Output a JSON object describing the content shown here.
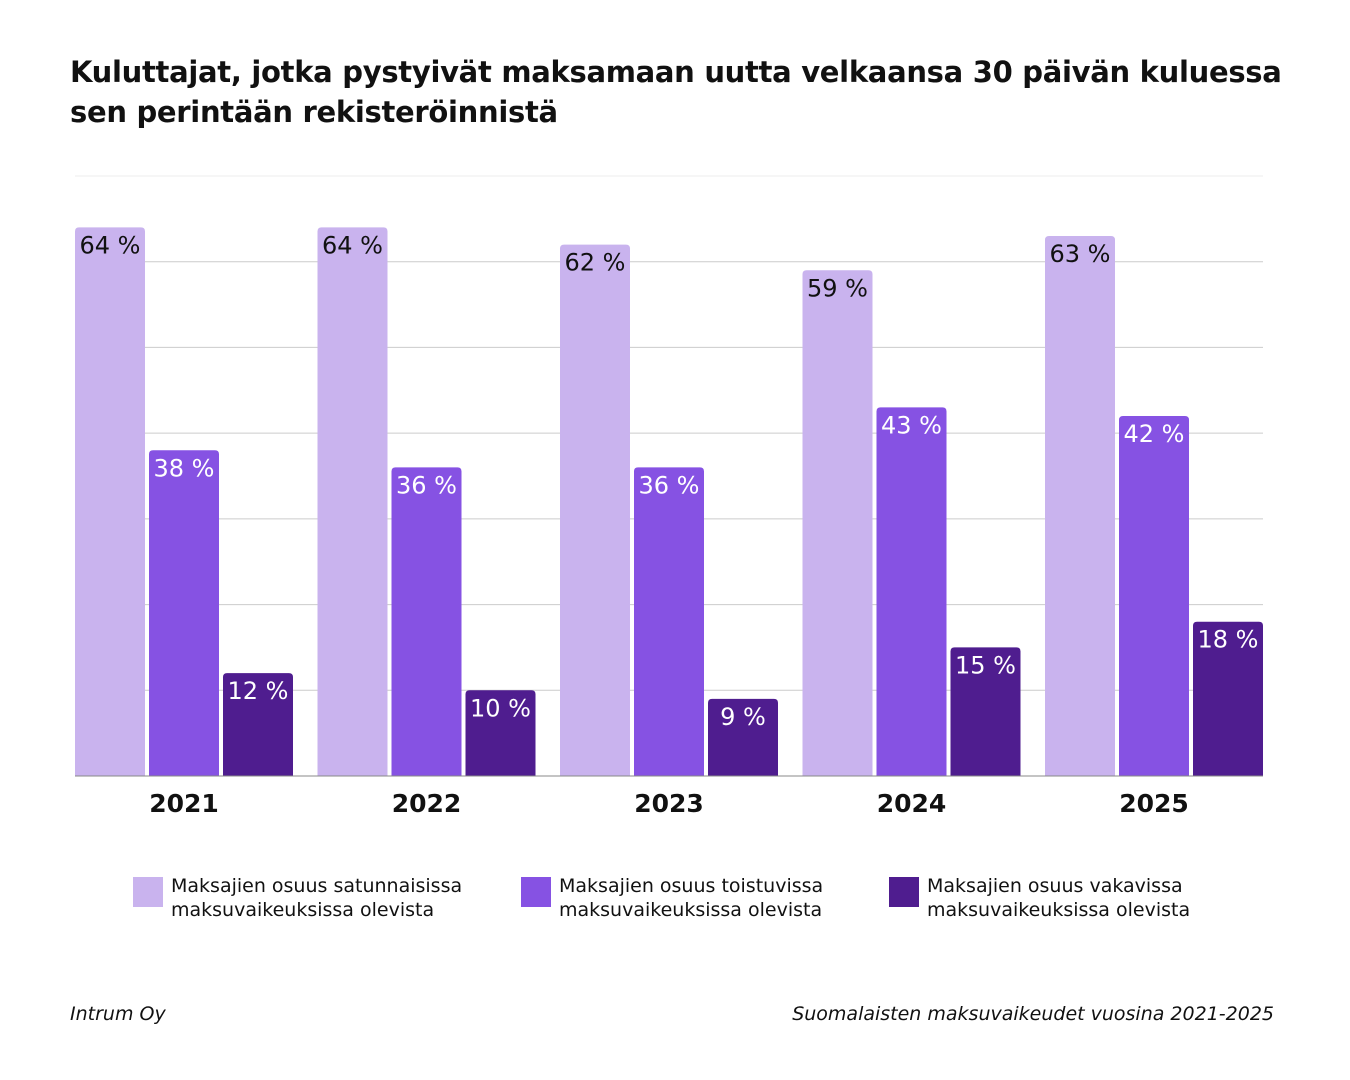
{
  "title": "Kuluttajat, jotka pystyivät maksamaan uutta velkaansa 30 päivän kuluessa sen perintään rekisteröinnistä",
  "source": "Intrum Oy",
  "note": "Suomalaisten maksuvaikeudet vuosina 2021-2025",
  "chart_data": {
    "type": "bar",
    "title": "Kuluttajat, jotka pystyivät maksamaan uutta velkaansa 30 päivän kuluessa sen perintään rekisteröinnistä",
    "categories": [
      "2021",
      "2022",
      "2023",
      "2024",
      "2025"
    ],
    "series": [
      {
        "name": "Maksajien osuus satunnaisissa maksuvaikeuksissa olevista",
        "color": "#c9b3ee",
        "label_color": "#111111",
        "values": [
          64,
          64,
          62,
          59,
          63
        ]
      },
      {
        "name": "Maksajien osuus toistuvissa maksuvaikeuksissa olevista",
        "color": "#8652e3",
        "label_color": "#ffffff",
        "values": [
          38,
          36,
          36,
          43,
          42
        ]
      },
      {
        "name": "Maksajien osuus vakavissa maksuvaikeuksissa olevista",
        "color": "#4f1d8f",
        "label_color": "#ffffff",
        "values": [
          12,
          10,
          9,
          15,
          18
        ]
      }
    ],
    "value_suffix": " %",
    "ylim": [
      0,
      70
    ],
    "grid": true,
    "y_axis_labels": false,
    "legend": "bottom"
  }
}
